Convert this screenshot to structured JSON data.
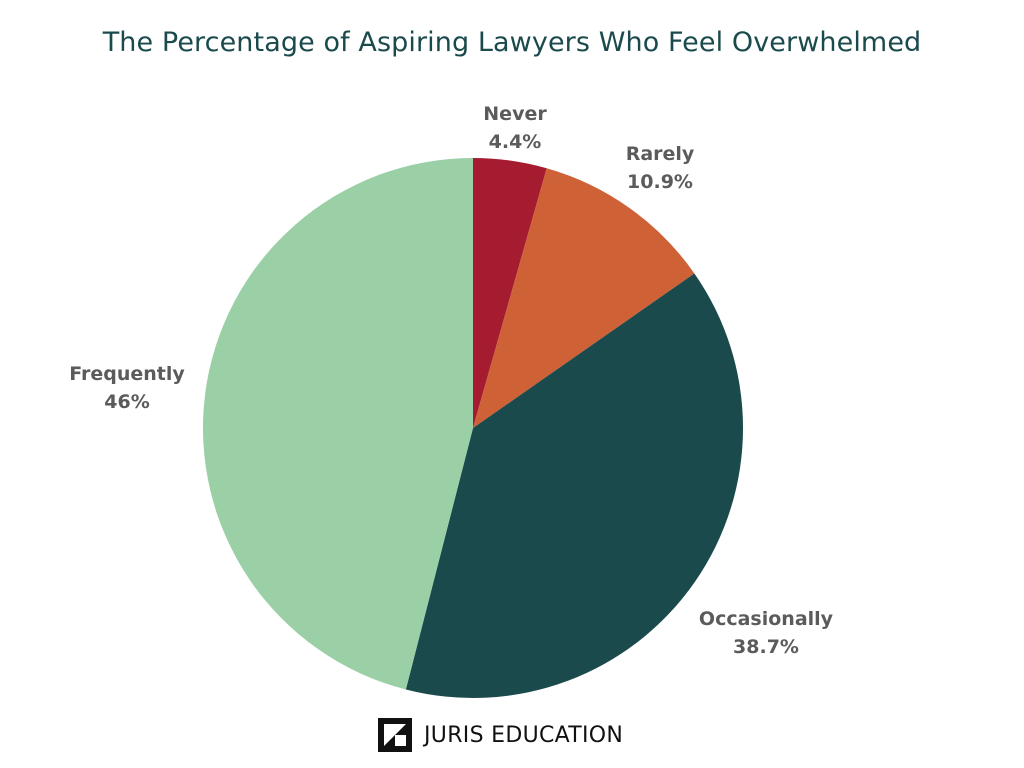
{
  "chart_data": {
    "type": "pie",
    "title": "The Percentage of Aspiring Lawyers Who Feel Overwhelmed",
    "categories": [
      "Never",
      "Rarely",
      "Occasionally",
      "Frequently"
    ],
    "values": [
      4.4,
      10.9,
      38.7,
      46
    ],
    "value_labels": [
      "4.4%",
      "10.9%",
      "38.7%",
      "46%"
    ],
    "colors": [
      "#a51c30",
      "#cf6136",
      "#1b4a4d",
      "#9bcfa6"
    ],
    "start_angle": "top (12 o'clock), clockwise",
    "legend": "none (labels beside slices)"
  },
  "brand": {
    "name": "JURIS EDUCATION",
    "icon": "juris-education-logo-icon"
  }
}
